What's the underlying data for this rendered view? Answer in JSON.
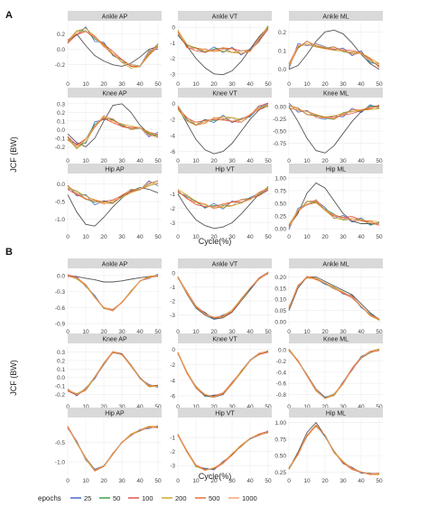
{
  "figure": {
    "y_axis_title": "JCF (BW)",
    "x_axis_title": "Cycle(%)",
    "legend_title": "epochs"
  },
  "colors": {
    "strip_bg": "#d9d9d9",
    "reference_line": "#555555",
    "series": [
      "#3b5fc0",
      "#2e9a3e",
      "#e04a3c",
      "#c8a21c",
      "#e06a28",
      "#f0a070"
    ]
  },
  "chart_data": {
    "type": "line",
    "x": [
      0,
      5,
      10,
      15,
      20,
      25,
      30,
      35,
      40,
      45,
      50
    ],
    "x_ticks": [
      "0",
      "10",
      "20",
      "30",
      "40",
      "50"
    ],
    "xlim": [
      0,
      52
    ],
    "series_names": [
      "25",
      "50",
      "100",
      "200",
      "500",
      "1000"
    ],
    "panels": [
      {
        "id": "A",
        "title": "Ankle AP",
        "ylim": [
          -0.38,
          0.35
        ],
        "yticks": [
          -0.2,
          0.0,
          0.2
        ],
        "ytick_labels": [
          "-0.2",
          "0.0",
          "0.2"
        ],
        "reference": [
          0.1,
          0.2,
          0.05,
          -0.08,
          -0.15,
          -0.2,
          -0.22,
          -0.18,
          -0.1,
          0.0,
          0.04
        ],
        "predicted": [
          0.1,
          0.22,
          0.25,
          0.15,
          0.05,
          -0.05,
          -0.15,
          -0.22,
          -0.2,
          -0.05,
          0.05
        ]
      },
      {
        "id": "A",
        "title": "Ankle VT",
        "ylim": [
          -3.3,
          0.3
        ],
        "yticks": [
          -3,
          -2,
          -1,
          0
        ],
        "ytick_labels": [
          "-3",
          "-2",
          "-1",
          "0"
        ],
        "reference": [
          -0.5,
          -1.2,
          -2.0,
          -2.6,
          -3.0,
          -3.05,
          -2.8,
          -2.2,
          -1.4,
          -0.6,
          0.0
        ],
        "predicted": [
          -0.3,
          -1.2,
          -1.4,
          -1.5,
          -1.45,
          -1.4,
          -1.5,
          -1.6,
          -1.5,
          -0.8,
          0.0
        ]
      },
      {
        "id": "A",
        "title": "Ankle ML",
        "ylim": [
          -0.05,
          0.25
        ],
        "yticks": [
          0.0,
          0.1,
          0.2
        ],
        "ytick_labels": [
          "0.0",
          "0.1",
          "0.2"
        ],
        "reference": [
          0.0,
          0.02,
          0.08,
          0.15,
          0.2,
          0.21,
          0.19,
          0.14,
          0.08,
          0.03,
          0.0
        ],
        "predicted": [
          0.02,
          0.12,
          0.14,
          0.13,
          0.12,
          0.11,
          0.1,
          0.09,
          0.08,
          0.05,
          0.02
        ]
      },
      {
        "id": "A",
        "title": "Knee AP",
        "ylim": [
          -0.3,
          0.35
        ],
        "yticks": [
          -0.2,
          -0.1,
          0.0,
          0.1,
          0.2,
          0.3
        ],
        "ytick_labels": [
          "-0.2",
          "-0.1",
          "0.0",
          "0.1",
          "0.2",
          "0.3"
        ],
        "reference": [
          -0.05,
          -0.15,
          -0.2,
          -0.1,
          0.1,
          0.28,
          0.3,
          0.2,
          0.05,
          -0.05,
          -0.07
        ],
        "predicted": [
          -0.1,
          -0.2,
          -0.12,
          0.05,
          0.15,
          0.1,
          0.05,
          0.02,
          0.0,
          -0.05,
          -0.07
        ]
      },
      {
        "id": "A",
        "title": "Knee VT",
        "ylim": [
          -6.5,
          0.5
        ],
        "yticks": [
          -6,
          -4,
          -2,
          0
        ],
        "ytick_labels": [
          "-6",
          "-4",
          "-2",
          "0"
        ],
        "reference": [
          -0.5,
          -2.5,
          -4.5,
          -5.8,
          -6.3,
          -6.0,
          -5.0,
          -3.5,
          -2.0,
          -0.8,
          -0.3
        ],
        "predicted": [
          -0.5,
          -2.0,
          -2.6,
          -2.3,
          -2.0,
          -1.9,
          -2.0,
          -2.2,
          -1.5,
          -0.5,
          -0.2
        ]
      },
      {
        "id": "A",
        "title": "Knee ML",
        "ylim": [
          -1.0,
          0.15
        ],
        "yticks": [
          -0.75,
          -0.5,
          -0.25,
          0.0
        ],
        "ytick_labels": [
          "-0.75",
          "-0.50",
          "-0.25",
          "0.00"
        ],
        "reference": [
          0.0,
          -0.3,
          -0.65,
          -0.9,
          -0.95,
          -0.8,
          -0.55,
          -0.3,
          -0.1,
          0.0,
          0.02
        ],
        "predicted": [
          0.0,
          -0.05,
          -0.12,
          -0.2,
          -0.25,
          -0.22,
          -0.15,
          -0.1,
          -0.05,
          -0.02,
          0.0
        ]
      },
      {
        "id": "A",
        "title": "Hip AP",
        "ylim": [
          -1.35,
          0.25
        ],
        "yticks": [
          -1.0,
          -0.5,
          0.0
        ],
        "ytick_labels": [
          "-1.0",
          "-0.5",
          "0.0"
        ],
        "reference": [
          -0.3,
          -0.8,
          -1.15,
          -1.2,
          -0.95,
          -0.65,
          -0.4,
          -0.2,
          -0.1,
          -0.15,
          -0.25
        ],
        "predicted": [
          -0.1,
          -0.25,
          -0.4,
          -0.5,
          -0.55,
          -0.5,
          -0.35,
          -0.2,
          -0.1,
          0.0,
          0.05
        ]
      },
      {
        "id": "A",
        "title": "Hip VT",
        "ylim": [
          -3.6,
          0.3
        ],
        "yticks": [
          -3,
          -2,
          -1
        ],
        "ytick_labels": [
          "-3",
          "-2",
          "-1"
        ],
        "reference": [
          -1.0,
          -2.0,
          -2.8,
          -3.2,
          -3.4,
          -3.3,
          -3.0,
          -2.4,
          -1.7,
          -1.0,
          -0.6
        ],
        "predicted": [
          -0.8,
          -1.2,
          -1.6,
          -1.8,
          -1.9,
          -1.8,
          -1.7,
          -1.5,
          -1.3,
          -1.0,
          -0.6
        ]
      },
      {
        "id": "A",
        "title": "Hip ML",
        "ylim": [
          -0.05,
          1.05
        ],
        "yticks": [
          0.0,
          0.25,
          0.5,
          0.75,
          1.0
        ],
        "ytick_labels": [
          "0.00",
          "0.25",
          "0.50",
          "0.75",
          "1.00"
        ],
        "reference": [
          0.05,
          0.3,
          0.7,
          0.9,
          0.8,
          0.55,
          0.3,
          0.15,
          0.1,
          0.1,
          0.12
        ],
        "predicted": [
          0.05,
          0.35,
          0.5,
          0.55,
          0.4,
          0.25,
          0.2,
          0.2,
          0.15,
          0.12,
          0.1
        ]
      },
      {
        "id": "B",
        "title": "Ankle AP",
        "ylim": [
          -0.95,
          0.1
        ],
        "yticks": [
          -0.9,
          -0.6,
          -0.3,
          0.0
        ],
        "ytick_labels": [
          "-0.9",
          "-0.6",
          "-0.3",
          "0.0"
        ],
        "reference": [
          0.0,
          -0.02,
          -0.05,
          -0.08,
          -0.12,
          -0.12,
          -0.1,
          -0.07,
          -0.04,
          -0.02,
          0.0
        ],
        "predicted": [
          0.0,
          -0.05,
          -0.18,
          -0.4,
          -0.6,
          -0.65,
          -0.5,
          -0.3,
          -0.12,
          -0.03,
          0.0
        ]
      },
      {
        "id": "B",
        "title": "Ankle VT",
        "ylim": [
          -3.8,
          0.2
        ],
        "yticks": [
          -3,
          -2,
          -1,
          0
        ],
        "ytick_labels": [
          "-3",
          "-2",
          "-1",
          "0"
        ],
        "reference": [
          -0.3,
          -1.5,
          -2.5,
          -3.0,
          -3.3,
          -3.2,
          -2.8,
          -2.0,
          -1.2,
          -0.4,
          0.0
        ],
        "predicted": [
          -0.3,
          -1.4,
          -2.4,
          -2.9,
          -3.2,
          -3.1,
          -2.7,
          -1.9,
          -1.1,
          -0.4,
          0.0
        ]
      },
      {
        "id": "B",
        "title": "Ankle ML",
        "ylim": [
          -0.02,
          0.23
        ],
        "yticks": [
          0.0,
          0.05,
          0.1,
          0.15,
          0.2
        ],
        "ytick_labels": [
          "0.00",
          "0.05",
          "0.10",
          "0.15",
          "0.20"
        ],
        "reference": [
          0.05,
          0.15,
          0.2,
          0.2,
          0.18,
          0.16,
          0.14,
          0.12,
          0.08,
          0.04,
          0.01
        ],
        "predicted": [
          0.06,
          0.16,
          0.2,
          0.19,
          0.17,
          0.15,
          0.13,
          0.11,
          0.07,
          0.03,
          0.01
        ]
      },
      {
        "id": "B",
        "title": "Knee AP",
        "ylim": [
          -0.28,
          0.38
        ],
        "yticks": [
          -0.2,
          -0.1,
          0.0,
          0.1,
          0.2,
          0.3
        ],
        "ytick_labels": [
          "-0.2",
          "-0.1",
          "0.0",
          "0.1",
          "0.2",
          "0.3"
        ],
        "reference": [
          -0.15,
          -0.2,
          -0.15,
          0.0,
          0.15,
          0.3,
          0.28,
          0.15,
          0.0,
          -0.1,
          -0.1
        ],
        "predicted": [
          -0.15,
          -0.2,
          -0.14,
          0.0,
          0.16,
          0.3,
          0.27,
          0.14,
          0.0,
          -0.1,
          -0.1
        ]
      },
      {
        "id": "B",
        "title": "Knee VT",
        "ylim": [
          -6.7,
          0.5
        ],
        "yticks": [
          -6,
          -4,
          -2,
          0
        ],
        "ytick_labels": [
          "-6",
          "-4",
          "-2",
          "0"
        ],
        "reference": [
          -0.5,
          -3.0,
          -5.0,
          -6.0,
          -6.2,
          -5.8,
          -4.5,
          -3.0,
          -1.5,
          -0.6,
          -0.3
        ],
        "predicted": [
          -0.5,
          -3.0,
          -4.9,
          -5.9,
          -6.1,
          -5.7,
          -4.4,
          -2.9,
          -1.4,
          -0.6,
          -0.3
        ]
      },
      {
        "id": "B",
        "title": "Knee ML",
        "ylim": [
          -0.92,
          0.08
        ],
        "yticks": [
          -0.8,
          -0.6,
          -0.4,
          -0.2,
          0.0
        ],
        "ytick_labels": [
          "-0.8",
          "-0.6",
          "-0.4",
          "-0.2",
          "0.0"
        ],
        "reference": [
          0.0,
          -0.2,
          -0.45,
          -0.7,
          -0.85,
          -0.8,
          -0.6,
          -0.35,
          -0.15,
          -0.05,
          0.0
        ],
        "predicted": [
          0.0,
          -0.2,
          -0.46,
          -0.72,
          -0.86,
          -0.8,
          -0.6,
          -0.34,
          -0.14,
          -0.04,
          0.0
        ]
      },
      {
        "id": "B",
        "title": "Hip AP",
        "ylim": [
          -1.35,
          0.1
        ],
        "yticks": [
          -1.0,
          -0.5
        ],
        "ytick_labels": [
          "-1.0",
          "-0.5"
        ],
        "reference": [
          -0.1,
          -0.5,
          -0.9,
          -1.2,
          -1.1,
          -0.8,
          -0.5,
          -0.3,
          -0.2,
          -0.1,
          -0.1
        ],
        "predicted": [
          -0.1,
          -0.5,
          -0.92,
          -1.22,
          -1.1,
          -0.8,
          -0.5,
          -0.3,
          -0.2,
          -0.1,
          -0.1
        ]
      },
      {
        "id": "B",
        "title": "Hip VT",
        "ylim": [
          -3.7,
          0.3
        ],
        "yticks": [
          -3,
          -2,
          -1
        ],
        "ytick_labels": [
          "-3",
          "-2",
          "-1"
        ],
        "reference": [
          -0.8,
          -2.0,
          -3.0,
          -3.3,
          -3.2,
          -2.8,
          -2.2,
          -1.6,
          -1.1,
          -0.8,
          -0.6
        ],
        "predicted": [
          -0.8,
          -2.0,
          -3.0,
          -3.3,
          -3.2,
          -2.8,
          -2.2,
          -1.6,
          -1.1,
          -0.8,
          -0.6
        ]
      },
      {
        "id": "B",
        "title": "Hip ML",
        "ylim": [
          0.2,
          1.05
        ],
        "yticks": [
          0.25,
          0.5,
          0.75,
          1.0
        ],
        "ytick_labels": [
          "0.25",
          "0.50",
          "0.75",
          "1.00"
        ],
        "reference": [
          0.3,
          0.55,
          0.85,
          1.0,
          0.8,
          0.55,
          0.4,
          0.3,
          0.25,
          0.22,
          0.22
        ],
        "predicted": [
          0.3,
          0.52,
          0.8,
          0.95,
          0.8,
          0.55,
          0.4,
          0.3,
          0.25,
          0.22,
          0.22
        ]
      }
    ]
  }
}
